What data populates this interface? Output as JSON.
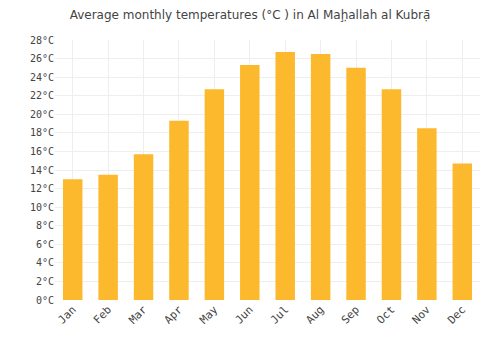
{
  "chart_data": {
    "type": "bar",
    "title": "Average monthly temperatures (°C ) in Al Maḩ̣allah al Kubrạ̄",
    "categories": [
      "Jan",
      "Feb",
      "Mar",
      "Apr",
      "May",
      "Jun",
      "Jul",
      "Aug",
      "Sep",
      "Oct",
      "Nov",
      "Dec"
    ],
    "values": [
      13.0,
      13.5,
      15.7,
      19.3,
      22.7,
      25.3,
      26.7,
      26.5,
      25.0,
      22.7,
      18.5,
      14.7
    ],
    "color": "#FDB92E",
    "ylim": [
      0,
      28
    ],
    "yticks": [
      {
        "value": 0,
        "label": "0°C"
      },
      {
        "value": 2,
        "label": "2°C"
      },
      {
        "value": 4,
        "label": "4°C"
      },
      {
        "value": 6,
        "label": "6°C"
      },
      {
        "value": 8,
        "label": "8°C"
      },
      {
        "value": 10,
        "label": "10°C"
      },
      {
        "value": 12,
        "label": "12°C"
      },
      {
        "value": 14,
        "label": "14°C"
      },
      {
        "value": 16,
        "label": "16°C"
      },
      {
        "value": 18,
        "label": "18°C"
      },
      {
        "value": 20,
        "label": "20°C"
      },
      {
        "value": 22,
        "label": "22°C"
      },
      {
        "value": 24,
        "label": "24°C"
      },
      {
        "value": 26,
        "label": "26°C"
      },
      {
        "value": 28,
        "label": "28°C"
      }
    ],
    "grid": true
  }
}
